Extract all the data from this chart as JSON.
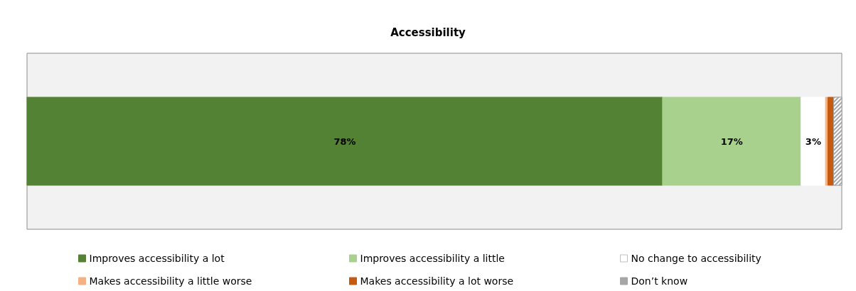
{
  "chart_data": {
    "type": "bar",
    "title": "Accessibility",
    "orientation": "horizontal",
    "stacked": true,
    "categories": [
      null
    ],
    "xlim": [
      0,
      100
    ],
    "legend": "bottom",
    "tick_labels": false,
    "series": [
      {
        "name": "Improves accessibility a lot",
        "color": "#548235",
        "values": [
          78
        ],
        "value_labels": [
          "78%"
        ]
      },
      {
        "name": "Improves accessibility a little",
        "color": "#a9d18e",
        "values": [
          17
        ],
        "value_labels": [
          "17%"
        ]
      },
      {
        "name": "No change to accessibility",
        "color": "#ffffff",
        "values": [
          3
        ],
        "value_labels": [
          "3%"
        ]
      },
      {
        "name": "Makes accessibility a little worse",
        "color": "#f4b183",
        "values": [
          0.3
        ],
        "value_labels": [
          null
        ]
      },
      {
        "name": "Makes accessibility a lot worse",
        "color": "#c55a11",
        "values": [
          0.7
        ],
        "value_labels": [
          null
        ]
      },
      {
        "name": "Don’t know",
        "color": "#a6a6a6",
        "values": [
          1
        ],
        "value_labels": [
          null
        ]
      }
    ]
  }
}
